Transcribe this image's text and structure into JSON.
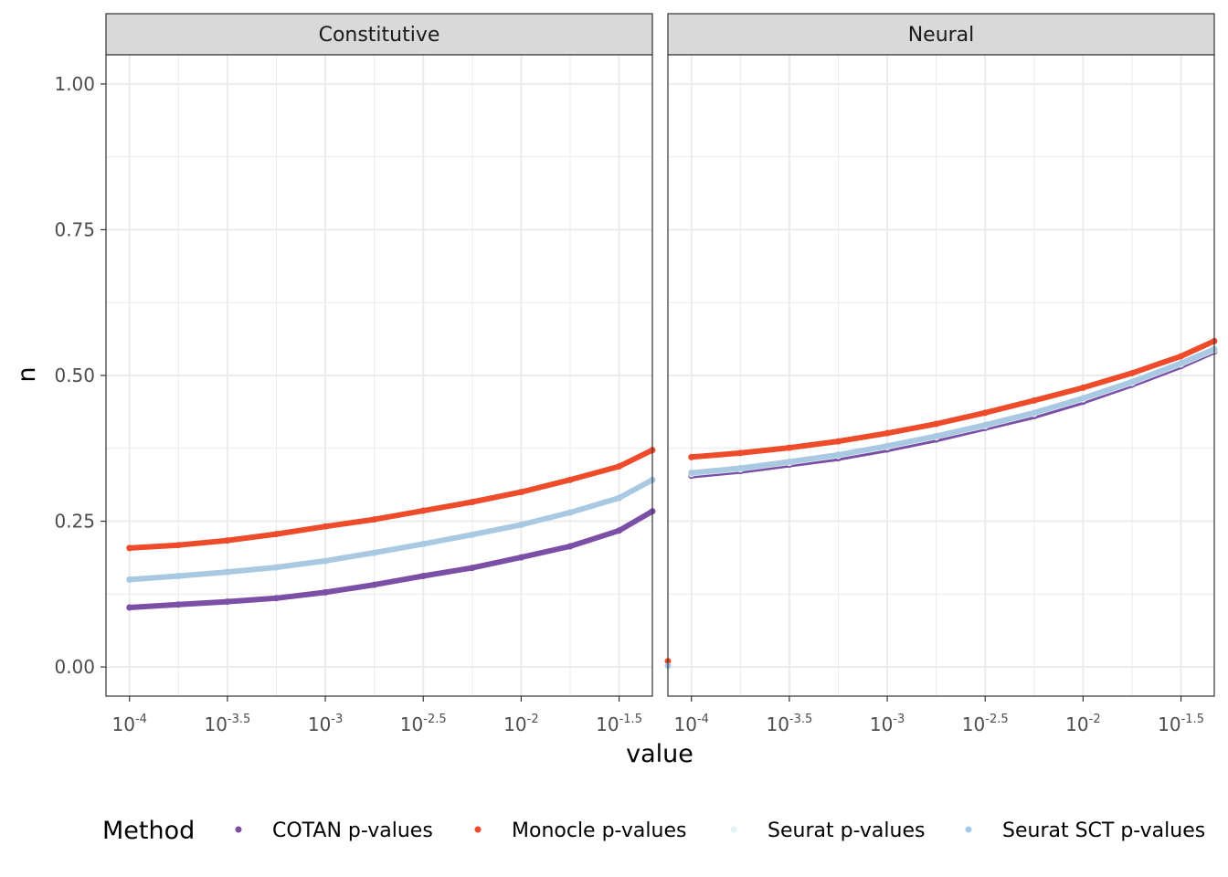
{
  "chart_data": {
    "type": "line",
    "facets": [
      "Constitutive",
      "Neural"
    ],
    "xlabel": "value",
    "ylabel": "n",
    "x_scale": "log10",
    "xlim_log10": [
      -4.12,
      -1.33
    ],
    "ylim": [
      -0.05,
      1.05
    ],
    "x_ticks_log10": [
      -4,
      -3.5,
      -3,
      -2.5,
      -2,
      -1.5
    ],
    "x_tick_base": "10",
    "x_tick_exponents": [
      "-4",
      "-3.5",
      "-3",
      "-2.5",
      "-2",
      "-1.5"
    ],
    "y_ticks": [
      0,
      0.25,
      0.5,
      0.75,
      1
    ],
    "y_tick_labels": [
      "0.00",
      "0.25",
      "0.50",
      "0.75",
      "1.00"
    ],
    "grid": true,
    "legend": {
      "title": "Method",
      "placement": "bottom",
      "entries": [
        "COTAN p-values",
        "Monocle p-values",
        "Seurat p-values",
        "Seurat SCT p-values"
      ]
    },
    "colors": {
      "COTAN p-values": "#7b4fa6",
      "Monocle p-values": "#ee4b2b",
      "Seurat p-values": "#e3f3f3",
      "Seurat SCT p-values": "#a9c9e2"
    },
    "panels": [
      {
        "facet": "Constitutive",
        "x_log10": [
          -4,
          -3.75,
          -3.5,
          -3.25,
          -3,
          -2.75,
          -2.5,
          -2.25,
          -2,
          -1.75,
          -1.5,
          -1.33
        ],
        "series": [
          {
            "name": "COTAN p-values",
            "y": [
              0.102,
              0.107,
              0.112,
              0.118,
              0.128,
              0.141,
              0.156,
              0.17,
              0.188,
              0.207,
              0.234,
              0.267
            ]
          },
          {
            "name": "Monocle p-values",
            "y": [
              0.204,
              0.209,
              0.217,
              0.228,
              0.241,
              0.253,
              0.268,
              0.283,
              0.3,
              0.321,
              0.344,
              0.372
            ]
          },
          {
            "name": "Seurat p-values",
            "y": [
              0.149,
              0.155,
              0.162,
              0.17,
              0.181,
              0.195,
              0.21,
              0.226,
              0.243,
              0.264,
              0.289,
              0.32
            ]
          },
          {
            "name": "Seurat SCT p-values",
            "y": [
              0.15,
              0.156,
              0.163,
              0.171,
              0.182,
              0.196,
              0.211,
              0.227,
              0.244,
              0.265,
              0.29,
              0.321
            ]
          }
        ]
      },
      {
        "facet": "Neural",
        "x_log10": [
          -4,
          -3.75,
          -3.5,
          -3.25,
          -3,
          -2.75,
          -2.5,
          -2.25,
          -2,
          -1.75,
          -1.5,
          -1.33
        ],
        "extra_points": [
          {
            "name": "Monocle p-values",
            "x_log10": -4.12,
            "y": 0.01
          },
          {
            "name": "Seurat SCT p-values",
            "x_log10": -4.12,
            "y": 0.002
          }
        ],
        "series": [
          {
            "name": "COTAN p-values",
            "y": [
              0.328,
              0.336,
              0.347,
              0.358,
              0.373,
              0.39,
              0.41,
              0.43,
              0.455,
              0.484,
              0.516,
              0.541
            ]
          },
          {
            "name": "Monocle p-values",
            "y": [
              0.36,
              0.367,
              0.376,
              0.387,
              0.401,
              0.417,
              0.436,
              0.457,
              0.479,
              0.504,
              0.533,
              0.559
            ]
          },
          {
            "name": "Seurat p-values",
            "y": [
              0.331,
              0.339,
              0.35,
              0.362,
              0.377,
              0.394,
              0.413,
              0.434,
              0.459,
              0.487,
              0.519,
              0.543
            ]
          },
          {
            "name": "Seurat SCT p-values",
            "y": [
              0.333,
              0.341,
              0.352,
              0.364,
              0.379,
              0.396,
              0.415,
              0.436,
              0.461,
              0.489,
              0.521,
              0.545
            ]
          }
        ]
      }
    ]
  }
}
